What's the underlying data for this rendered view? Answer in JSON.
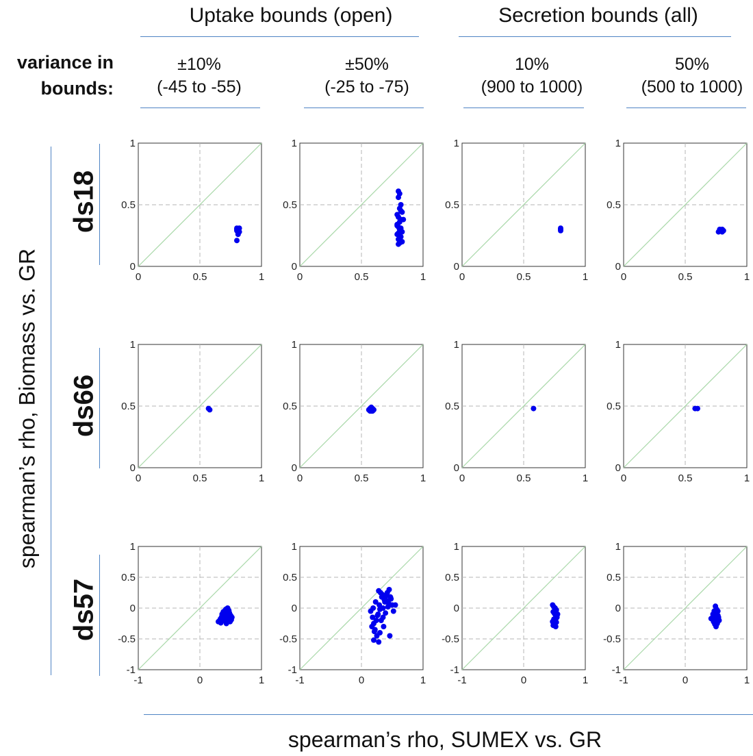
{
  "header": {
    "uptake_title": "Uptake bounds (open)",
    "secretion_title": "Secretion bounds (all)",
    "variance_line1": "variance in",
    "variance_line2": "bounds:",
    "columns": [
      {
        "line1": "±10%",
        "line2": "(-45 to -55)"
      },
      {
        "line1": "±50%",
        "line2": "(-25 to -75)"
      },
      {
        "line1": "10%",
        "line2": "(900 to 1000)"
      },
      {
        "line1": "50%",
        "line2": "(500 to 1000)"
      }
    ]
  },
  "rows": [
    {
      "label": "ds18"
    },
    {
      "label": "ds66"
    },
    {
      "label": "ds57"
    }
  ],
  "axes": {
    "ylabel": "spearman’s rho, Biomass vs. GR",
    "xlabel": "spearman’s rho, SUMEX vs. GR"
  },
  "colors": {
    "points": "#0000ee",
    "diagonal": "#a8d8a8",
    "grid": "#b5b5b5",
    "rules": "#4e83c4"
  },
  "chart_data": [
    {
      "type": "scatter",
      "row": "ds18",
      "column": "±10%",
      "xlim": [
        0,
        1
      ],
      "ylim": [
        0,
        1
      ],
      "xticks": [
        "0",
        "0.5",
        "1"
      ],
      "yticks": [
        "0",
        "0.5",
        "1"
      ],
      "grid": true,
      "x": [
        0.8,
        0.8,
        0.81,
        0.82,
        0.81,
        0.8,
        0.82,
        0.81,
        0.8
      ],
      "y": [
        0.31,
        0.29,
        0.3,
        0.28,
        0.27,
        0.3,
        0.31,
        0.26,
        0.21
      ]
    },
    {
      "type": "scatter",
      "row": "ds18",
      "column": "±50%",
      "xlim": [
        0,
        1
      ],
      "ylim": [
        0,
        1
      ],
      "xticks": [
        "0",
        "0.5",
        "1"
      ],
      "yticks": [
        "0",
        "0.5",
        "1"
      ],
      "grid": true,
      "x": [
        0.8,
        0.81,
        0.8,
        0.82,
        0.81,
        0.83,
        0.79,
        0.8,
        0.82,
        0.81,
        0.84,
        0.79,
        0.8,
        0.82,
        0.81,
        0.83,
        0.8,
        0.79,
        0.81,
        0.82,
        0.8,
        0.83,
        0.81,
        0.8,
        0.79,
        0.82
      ],
      "y": [
        0.61,
        0.59,
        0.56,
        0.5,
        0.47,
        0.44,
        0.42,
        0.4,
        0.38,
        0.36,
        0.38,
        0.34,
        0.32,
        0.31,
        0.3,
        0.28,
        0.27,
        0.26,
        0.25,
        0.24,
        0.22,
        0.2,
        0.19,
        0.18,
        0.33,
        0.45
      ]
    },
    {
      "type": "scatter",
      "row": "ds18",
      "column": "10%",
      "xlim": [
        0,
        1
      ],
      "ylim": [
        0,
        1
      ],
      "xticks": [
        "0",
        "0.5",
        "1"
      ],
      "yticks": [
        "0",
        "0.5",
        "1"
      ],
      "grid": true,
      "x": [
        0.8,
        0.8,
        0.8
      ],
      "y": [
        0.31,
        0.3,
        0.29
      ]
    },
    {
      "type": "scatter",
      "row": "ds18",
      "column": "50%",
      "xlim": [
        0,
        1
      ],
      "ylim": [
        0,
        1
      ],
      "xticks": [
        "0",
        "0.5",
        "1"
      ],
      "yticks": [
        "0",
        "0.5",
        "1"
      ],
      "grid": true,
      "x": [
        0.77,
        0.79,
        0.8,
        0.81,
        0.78,
        0.8
      ],
      "y": [
        0.28,
        0.29,
        0.3,
        0.29,
        0.3,
        0.28
      ]
    },
    {
      "type": "scatter",
      "row": "ds66",
      "column": "±10%",
      "xlim": [
        0,
        1
      ],
      "ylim": [
        0,
        1
      ],
      "xticks": [
        "0",
        "0.5",
        "1"
      ],
      "yticks": [
        "0",
        "0.5",
        "1"
      ],
      "grid": true,
      "x": [
        0.57,
        0.58
      ],
      "y": [
        0.48,
        0.47
      ]
    },
    {
      "type": "scatter",
      "row": "ds66",
      "column": "±50%",
      "xlim": [
        0,
        1
      ],
      "ylim": [
        0,
        1
      ],
      "xticks": [
        "0",
        "0.5",
        "1"
      ],
      "yticks": [
        "0",
        "0.5",
        "1"
      ],
      "grid": true,
      "x": [
        0.56,
        0.57,
        0.58,
        0.59,
        0.6,
        0.57,
        0.58,
        0.59
      ],
      "y": [
        0.47,
        0.48,
        0.46,
        0.48,
        0.47,
        0.46,
        0.49,
        0.46
      ]
    },
    {
      "type": "scatter",
      "row": "ds66",
      "column": "10%",
      "xlim": [
        0,
        1
      ],
      "ylim": [
        0,
        1
      ],
      "xticks": [
        "0",
        "0.5",
        "1"
      ],
      "yticks": [
        "0",
        "0.5",
        "1"
      ],
      "grid": true,
      "x": [
        0.58
      ],
      "y": [
        0.48
      ]
    },
    {
      "type": "scatter",
      "row": "ds66",
      "column": "50%",
      "xlim": [
        0,
        1
      ],
      "ylim": [
        0,
        1
      ],
      "xticks": [
        "0",
        "0.5",
        "1"
      ],
      "yticks": [
        "0",
        "0.5",
        "1"
      ],
      "grid": true,
      "x": [
        0.58,
        0.6
      ],
      "y": [
        0.48,
        0.48
      ]
    },
    {
      "type": "scatter",
      "row": "ds57",
      "column": "±10%",
      "xlim": [
        -1,
        1
      ],
      "ylim": [
        -1,
        1
      ],
      "xticks": [
        "-1",
        "0",
        "1"
      ],
      "yticks": [
        "-1",
        "-0.5",
        "0",
        "0.5",
        "1"
      ],
      "grid": true,
      "x": [
        0.3,
        0.33,
        0.35,
        0.38,
        0.4,
        0.42,
        0.45,
        0.48,
        0.5,
        0.52,
        0.4,
        0.43,
        0.46,
        0.36,
        0.44,
        0.49,
        0.38,
        0.42,
        0.47,
        0.51,
        0.34,
        0.41,
        0.45
      ],
      "y": [
        -0.22,
        -0.18,
        -0.15,
        -0.12,
        -0.05,
        -0.02,
        0.0,
        -0.08,
        -0.12,
        -0.15,
        -0.2,
        -0.25,
        -0.18,
        -0.1,
        -0.13,
        -0.22,
        -0.06,
        -0.16,
        -0.04,
        -0.19,
        -0.24,
        -0.09,
        -0.11
      ]
    },
    {
      "type": "scatter",
      "row": "ds57",
      "column": "±50%",
      "xlim": [
        -1,
        1
      ],
      "ylim": [
        -1,
        1
      ],
      "xticks": [
        "-1",
        "0",
        "1"
      ],
      "yticks": [
        "-1",
        "-0.5",
        "0",
        "0.5",
        "1"
      ],
      "grid": true,
      "x": [
        0.15,
        0.18,
        0.2,
        0.22,
        0.25,
        0.28,
        0.3,
        0.32,
        0.35,
        0.38,
        0.4,
        0.42,
        0.45,
        0.48,
        0.5,
        0.52,
        0.55,
        0.2,
        0.23,
        0.27,
        0.31,
        0.36,
        0.41,
        0.46,
        0.17,
        0.24,
        0.29,
        0.33,
        0.39,
        0.44,
        0.19,
        0.26,
        0.34,
        0.43,
        0.3,
        0.37,
        0.47,
        0.21,
        0.28,
        0.35
      ],
      "y": [
        -0.05,
        -0.15,
        -0.25,
        -0.35,
        -0.45,
        -0.55,
        -0.4,
        -0.2,
        0.0,
        0.1,
        0.2,
        0.25,
        0.3,
        0.15,
        0.05,
        -0.05,
        0.05,
        -0.52,
        0.1,
        -0.1,
        0.25,
        -0.3,
        0.12,
        -0.45,
        -0.3,
        -0.2,
        0.05,
        0.18,
        -0.08,
        0.08,
        0.0,
        -0.12,
        0.22,
        0.02,
        -0.02,
        0.14,
        0.18,
        -0.38,
        0.28,
        -0.15
      ]
    },
    {
      "type": "scatter",
      "row": "ds57",
      "column": "10%",
      "xlim": [
        -1,
        1
      ],
      "ylim": [
        -1,
        1
      ],
      "xticks": [
        "-1",
        "0",
        "1"
      ],
      "yticks": [
        "-1",
        "-0.5",
        "0",
        "0.5",
        "1"
      ],
      "grid": true,
      "x": [
        0.47,
        0.49,
        0.51,
        0.53,
        0.48,
        0.5,
        0.52,
        0.54,
        0.49,
        0.51,
        0.53,
        0.5,
        0.48,
        0.52,
        0.55,
        0.47,
        0.5,
        0.53
      ],
      "y": [
        0.05,
        0.02,
        0.0,
        -0.03,
        -0.06,
        -0.09,
        -0.12,
        -0.15,
        -0.18,
        -0.2,
        -0.23,
        -0.26,
        -0.28,
        -0.3,
        -0.1,
        -0.22,
        -0.05,
        -0.16
      ]
    },
    {
      "type": "scatter",
      "row": "ds57",
      "column": "50%",
      "xlim": [
        -1,
        1
      ],
      "ylim": [
        -1,
        1
      ],
      "xticks": [
        "-1",
        "0",
        "1"
      ],
      "yticks": [
        "-1",
        "-0.5",
        "0",
        "0.5",
        "1"
      ],
      "grid": true,
      "x": [
        0.42,
        0.45,
        0.47,
        0.49,
        0.51,
        0.53,
        0.55,
        0.46,
        0.48,
        0.5,
        0.52,
        0.54,
        0.44,
        0.49,
        0.53,
        0.47,
        0.51
      ],
      "y": [
        -0.17,
        -0.1,
        -0.05,
        0.03,
        -0.02,
        -0.12,
        -0.2,
        -0.22,
        -0.26,
        -0.3,
        -0.25,
        -0.15,
        -0.18,
        -0.08,
        -0.05,
        -0.14,
        -0.19
      ]
    }
  ]
}
